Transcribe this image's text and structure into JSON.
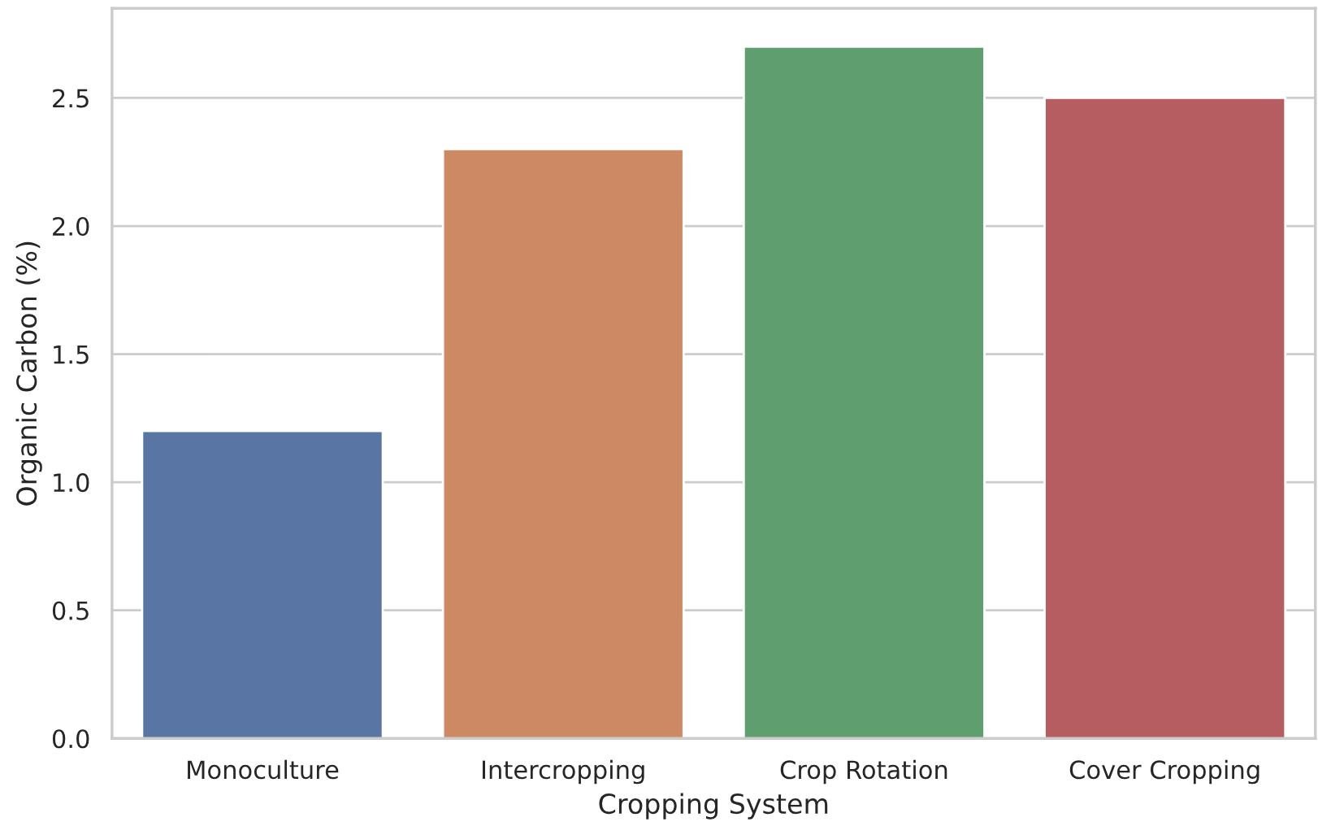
{
  "chart_data": {
    "type": "bar",
    "xlabel": "Cropping System",
    "ylabel": "Organic Carbon (%)",
    "categories": [
      "Monoculture",
      "Intercropping",
      "Crop Rotation",
      "Cover Cropping"
    ],
    "values": [
      1.2,
      2.3,
      2.7,
      2.5
    ],
    "colors": [
      "#5975a4",
      "#cc8963",
      "#5f9e6e",
      "#b55d60"
    ],
    "ylim": [
      0,
      2.85
    ],
    "yticks": [
      {
        "value": 0,
        "label": "0.0"
      },
      0.5,
      {
        "value": 1,
        "label": "1.0"
      },
      1.5,
      {
        "value": 2,
        "label": "2.0"
      },
      2.5
    ],
    "grid": "y"
  }
}
